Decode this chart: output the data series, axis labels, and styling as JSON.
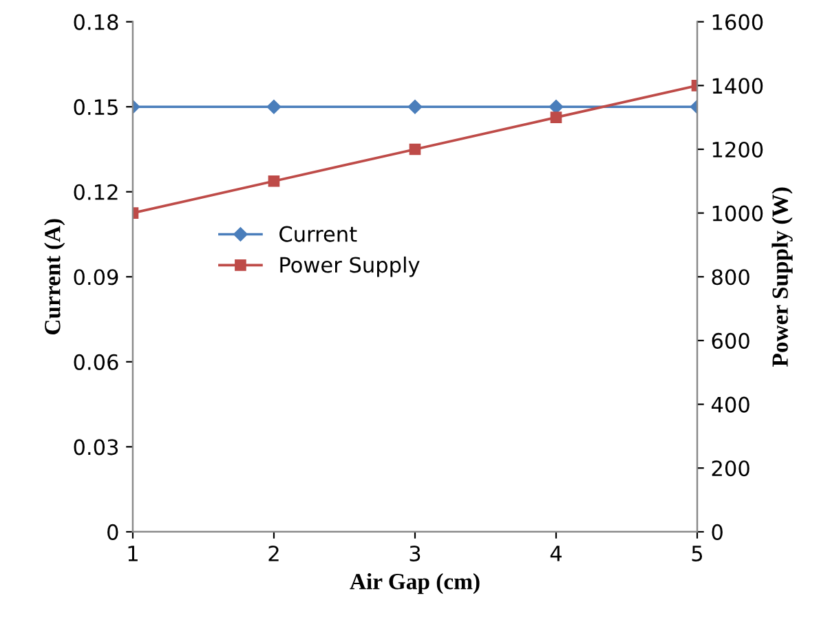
{
  "chart_data": {
    "type": "line",
    "xlabel": "Air Gap (cm)",
    "ylabel": "Current (A)",
    "y2label": "Power Supply (W)",
    "x": [
      1,
      2,
      3,
      4,
      5
    ],
    "xlim": [
      1,
      5
    ],
    "xticks": [
      1,
      2,
      3,
      4,
      5
    ],
    "ylim": [
      0,
      0.18
    ],
    "yticks": [
      0,
      0.03,
      0.06,
      0.09,
      0.12,
      0.15,
      0.18
    ],
    "y2lim": [
      0,
      1600
    ],
    "y2ticks": [
      0,
      200,
      400,
      600,
      800,
      1000,
      1200,
      1400,
      1600
    ],
    "grid": false,
    "legend": "center left",
    "series": [
      {
        "name": "Current",
        "color": "#4a7ebb",
        "marker": "diamond",
        "values": [
          0.15,
          0.15,
          0.15,
          0.15,
          0.15
        ]
      },
      {
        "name": "Power Supply",
        "color": "#be4b48",
        "marker": "square",
        "axis": "y2",
        "values": [
          1000,
          1100,
          1200,
          1300,
          1400
        ]
      }
    ]
  }
}
